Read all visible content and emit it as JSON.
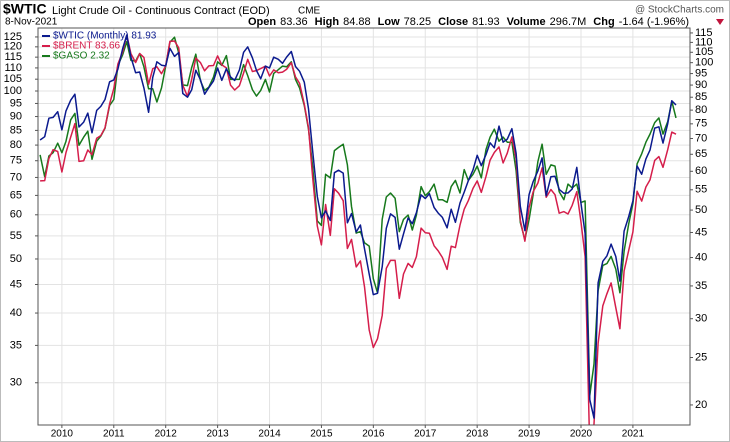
{
  "chart_data": {
    "type": "line",
    "symbol": "$WTIC",
    "title": "Light Crude Oil - Continuous Contract (EOD)",
    "exchange": "CME",
    "date": "8-Nov-2021",
    "watermark": "@ StockCharts.com",
    "stats": [
      {
        "label": "Open",
        "value": "83.36"
      },
      {
        "label": "High",
        "value": "84.88"
      },
      {
        "label": "Low",
        "value": "78.25"
      },
      {
        "label": "Close",
        "value": "81.93"
      },
      {
        "label": "Volume",
        "value": "296.7M"
      },
      {
        "label": "Chg",
        "value": "-1.64 (-1.96%)"
      }
    ],
    "log_scale": true,
    "grid": true,
    "legend": "top-left",
    "xlim": [
      2009.54,
      2022.1
    ],
    "xticks": [
      2010,
      2011,
      2012,
      2013,
      2014,
      2015,
      2016,
      2017,
      2018,
      2019,
      2020,
      2021
    ],
    "ylim": [
      25.2,
      129.7
    ],
    "yticks": [
      30,
      35,
      40,
      45,
      50,
      55,
      60,
      65,
      70,
      75,
      80,
      85,
      90,
      95,
      100,
      105,
      110,
      115,
      120,
      125
    ],
    "y2lim": [
      18.2,
      117.7
    ],
    "y2ticks": [
      20,
      25,
      30,
      35,
      40,
      45,
      50,
      55,
      60,
      65,
      70,
      75,
      80,
      85,
      90,
      95,
      100,
      105,
      110,
      115
    ],
    "y3lim": [
      0.548,
      3.54
    ],
    "x": [
      2009.58,
      2009.67,
      2009.75,
      2009.83,
      2009.92,
      2010.0,
      2010.08,
      2010.17,
      2010.25,
      2010.33,
      2010.42,
      2010.5,
      2010.58,
      2010.67,
      2010.75,
      2010.83,
      2010.92,
      2011.0,
      2011.08,
      2011.17,
      2011.25,
      2011.33,
      2011.42,
      2011.5,
      2011.58,
      2011.67,
      2011.75,
      2011.83,
      2011.92,
      2012.0,
      2012.08,
      2012.17,
      2012.25,
      2012.33,
      2012.42,
      2012.5,
      2012.58,
      2012.67,
      2012.75,
      2012.83,
      2012.92,
      2013.0,
      2013.08,
      2013.17,
      2013.25,
      2013.33,
      2013.42,
      2013.5,
      2013.58,
      2013.67,
      2013.75,
      2013.83,
      2013.92,
      2014.0,
      2014.08,
      2014.17,
      2014.25,
      2014.33,
      2014.42,
      2014.5,
      2014.58,
      2014.67,
      2014.75,
      2014.83,
      2014.92,
      2015.0,
      2015.08,
      2015.17,
      2015.25,
      2015.33,
      2015.42,
      2015.5,
      2015.58,
      2015.67,
      2015.75,
      2015.83,
      2015.92,
      2016.0,
      2016.08,
      2016.17,
      2016.25,
      2016.33,
      2016.42,
      2016.5,
      2016.58,
      2016.67,
      2016.75,
      2016.83,
      2016.92,
      2017.0,
      2017.08,
      2017.17,
      2017.25,
      2017.33,
      2017.42,
      2017.5,
      2017.58,
      2017.67,
      2017.75,
      2017.83,
      2017.92,
      2018.0,
      2018.08,
      2018.17,
      2018.25,
      2018.33,
      2018.42,
      2018.5,
      2018.58,
      2018.67,
      2018.75,
      2018.83,
      2018.92,
      2019.0,
      2019.08,
      2019.17,
      2019.25,
      2019.33,
      2019.42,
      2019.5,
      2019.58,
      2019.67,
      2019.75,
      2019.83,
      2019.92,
      2020.0,
      2020.08,
      2020.17,
      2020.25,
      2020.33,
      2020.42,
      2020.5,
      2020.58,
      2020.67,
      2020.75,
      2020.83,
      2020.92,
      2021.0,
      2021.08,
      2021.17,
      2021.25,
      2021.33,
      2021.42,
      2021.5,
      2021.58,
      2021.67,
      2021.75,
      2021.83
    ],
    "series": [
      {
        "name": "$WTIC (Monthly) 81.93",
        "color": "#0b1a8e",
        "axis": "y2",
        "values": [
          69.5,
          70.6,
          77.0,
          77.3,
          79.4,
          72.9,
          79.7,
          83.8,
          86.2,
          73.9,
          75.6,
          78.9,
          71.9,
          79.9,
          81.4,
          84.1,
          91.4,
          92.2,
          97.0,
          106.7,
          113.9,
          102.7,
          95.4,
          95.7,
          88.8,
          79.2,
          93.2,
          100.4,
          98.8,
          98.5,
          107.0,
          103.0,
          104.9,
          86.5,
          85.0,
          88.0,
          96.5,
          92.2,
          86.2,
          88.9,
          91.8,
          97.5,
          92.0,
          97.2,
          93.5,
          92.0,
          96.6,
          105.0,
          107.7,
          102.3,
          96.4,
          92.7,
          98.4,
          97.5,
          102.6,
          101.6,
          99.7,
          102.7,
          105.4,
          98.2,
          96.0,
          91.2,
          80.5,
          66.2,
          53.3,
          48.2,
          49.8,
          47.6,
          59.6,
          60.3,
          59.5,
          47.1,
          49.2,
          45.1,
          46.6,
          41.7,
          37.0,
          33.6,
          33.8,
          38.3,
          45.9,
          49.1,
          48.3,
          41.6,
          44.7,
          48.2,
          46.9,
          49.4,
          53.7,
          52.8,
          54.0,
          50.6,
          49.3,
          48.3,
          46.0,
          50.2,
          47.2,
          51.7,
          54.4,
          57.4,
          60.4,
          64.7,
          61.6,
          64.9,
          68.6,
          67.0,
          74.2,
          68.8,
          69.8,
          73.3,
          65.3,
          50.9,
          45.4,
          53.8,
          57.2,
          60.1,
          63.9,
          53.5,
          58.5,
          58.6,
          55.1,
          54.1,
          54.2,
          55.2,
          61.1,
          51.6,
          44.8,
          20.5,
          18.8,
          35.5,
          39.3,
          40.3,
          42.6,
          40.2,
          35.8,
          45.3,
          48.5,
          52.2,
          61.5,
          59.2,
          63.6,
          66.3,
          73.5,
          73.95,
          68.5,
          75.0,
          83.6,
          81.93
        ]
      },
      {
        "name": "$BRENT 83.66",
        "color": "#d51e4b",
        "values": [
          69.0,
          69.1,
          75.7,
          78.5,
          77.9,
          71.6,
          77.6,
          82.7,
          87.4,
          74.8,
          75.0,
          78.4,
          76.9,
          82.3,
          83.2,
          85.9,
          94.8,
          101.0,
          111.8,
          117.4,
          125.9,
          116.7,
          112.5,
          116.7,
          114.9,
          102.8,
          109.6,
          110.5,
          107.4,
          110.9,
          122.7,
          122.9,
          119.5,
          102.4,
          97.8,
          104.9,
          114.6,
          112.4,
          108.7,
          110.9,
          111.1,
          115.6,
          111.4,
          110.0,
          102.4,
          100.4,
          102.2,
          107.7,
          114.0,
          108.4,
          108.8,
          109.7,
          110.8,
          106.4,
          109.1,
          107.8,
          108.1,
          109.4,
          112.4,
          106.0,
          103.2,
          94.7,
          85.9,
          70.2,
          57.3,
          52.99,
          62.6,
          55.1,
          66.8,
          65.6,
          63.6,
          52.2,
          54.2,
          48.4,
          49.6,
          44.6,
          37.3,
          34.7,
          35.97,
          39.6,
          48.1,
          49.7,
          49.7,
          42.5,
          47.0,
          49.1,
          48.3,
          50.5,
          56.8,
          55.7,
          55.6,
          52.8,
          51.7,
          50.3,
          47.9,
          52.7,
          52.4,
          57.5,
          61.4,
          63.6,
          66.9,
          69.0,
          65.8,
          70.3,
          75.2,
          77.6,
          79.4,
          74.3,
          77.4,
          82.7,
          75.5,
          58.7,
          53.8,
          61.9,
          66.0,
          68.4,
          72.8,
          64.5,
          66.6,
          65.2,
          60.4,
          60.8,
          60.2,
          62.4,
          66.0,
          58.2,
          50.5,
          22.7,
          25.3,
          35.3,
          41.2,
          43.3,
          45.3,
          40.9,
          37.5,
          47.6,
          51.8,
          55.9,
          66.1,
          63.5,
          67.3,
          69.3,
          75.1,
          76.3,
          72.99,
          78.5,
          84.4,
          83.66
        ]
      },
      {
        "name": "$GASO 2.32",
        "color": "#17791c",
        "axis": "y3",
        "values": [
          1.95,
          1.76,
          1.94,
          1.97,
          2.06,
          1.97,
          2.08,
          2.3,
          2.37,
          2.04,
          2.12,
          2.18,
          1.91,
          2.08,
          2.13,
          2.21,
          2.46,
          2.53,
          2.97,
          3.12,
          3.32,
          3.04,
          3.03,
          3.14,
          2.95,
          2.66,
          2.66,
          2.5,
          2.67,
          2.96,
          3.31,
          3.39,
          3.15,
          2.71,
          2.7,
          2.94,
          3.13,
          2.76,
          2.64,
          2.68,
          2.81,
          3.02,
          2.97,
          3.11,
          2.78,
          2.78,
          2.78,
          2.98,
          2.83,
          2.65,
          2.57,
          2.64,
          2.78,
          2.62,
          2.86,
          2.91,
          2.96,
          2.95,
          3.02,
          2.78,
          2.67,
          2.46,
          2.2,
          1.85,
          1.43,
          1.4,
          1.78,
          1.75,
          1.99,
          2.02,
          2.05,
          1.86,
          1.53,
          1.35,
          1.36,
          1.29,
          1.27,
          1.09,
          1.02,
          1.44,
          1.6,
          1.63,
          1.59,
          1.36,
          1.44,
          1.47,
          1.37,
          1.47,
          1.68,
          1.61,
          1.64,
          1.7,
          1.58,
          1.58,
          1.56,
          1.68,
          1.73,
          1.63,
          1.82,
          1.73,
          1.78,
          1.85,
          1.75,
          2.0,
          2.12,
          2.2,
          2.08,
          2.12,
          2.07,
          2.07,
          1.81,
          1.42,
          1.31,
          1.44,
          1.62,
          1.89,
          2.05,
          1.78,
          1.86,
          1.85,
          1.64,
          1.58,
          1.7,
          1.67,
          1.7,
          1.56,
          1.57,
          0.63,
          0.73,
          1.03,
          1.16,
          1.17,
          1.21,
          1.14,
          1.02,
          1.24,
          1.41,
          1.55,
          1.87,
          1.96,
          2.07,
          2.15,
          2.27,
          2.32,
          2.15,
          2.28,
          2.51,
          2.32
        ]
      }
    ]
  }
}
